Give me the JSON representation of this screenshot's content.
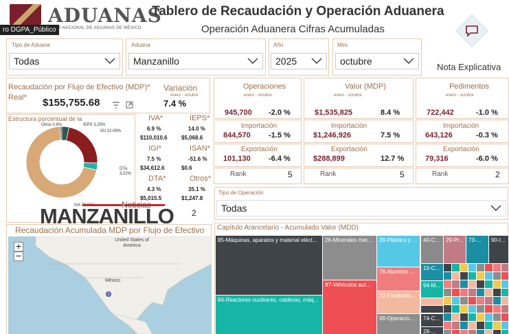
{
  "header": {
    "brand": "ADUANAS",
    "brand_sub": "AGENCIA NACIONAL DE ADUANAS DE MÉXICO",
    "tag": "ro DGPA_Público",
    "title": "Tablero de Recaudación y Operación Aduanera",
    "subtitle": "Operación Aduanera Cifras Acumuladas",
    "nota_label": "Nota Explicativa",
    "nota_icon": "comment-icon"
  },
  "filters": [
    {
      "label": "Tipo de Aduana",
      "value": "Todas"
    },
    {
      "label": "Aduana",
      "value": "Manzanillo"
    },
    {
      "label": "Año",
      "value": "2025"
    },
    {
      "label": "Mes",
      "value": "octubre"
    }
  ],
  "recaudacion": {
    "title_line1": "Recaudación por Flujo de Efectivo (MDP)*",
    "title_line2": "Real*",
    "value": "$155,755.68",
    "variacion_label": "Variación",
    "variacion_sub": "enero - octubre",
    "variacion_value": "7.4 %"
  },
  "donut": {
    "title": "Estructura porcentual de la",
    "legend": [
      {
        "label": "IEPS 3.25%"
      },
      {
        "label": "Otros 0.8%"
      },
      {
        "label": "IGI 22.09%"
      },
      {
        "label": "DTA 3.22%"
      },
      {
        "label": "IVA 70.65%"
      }
    ],
    "chart_data": {
      "type": "pie",
      "categories": [
        "IVA",
        "IGI",
        "DTA",
        "IEPS",
        "Otros"
      ],
      "values": [
        70.65,
        22.09,
        3.22,
        3.25,
        0.8
      ],
      "colors": [
        "#d8a877",
        "#8a1e1e",
        "#1fb3a8",
        "#2e5752",
        "#555555"
      ]
    }
  },
  "taxes": [
    {
      "name": "IVA*",
      "pct": "6.9 %",
      "value": "$110,010.6"
    },
    {
      "name": "IEPS*",
      "pct": "14.0 %",
      "value": "$5,068.6"
    },
    {
      "name": "IGI*",
      "pct": "7.5 %",
      "value": "$34,612.6"
    },
    {
      "name": "ISAN*",
      "pct": "-51.6 %",
      "value": "$0.6"
    },
    {
      "name": "DTA*",
      "pct": "4.3 %",
      "value": "$5,015.5"
    },
    {
      "name": "Otros*",
      "pct": "35.1 %",
      "value": "$1,247.8"
    }
  ],
  "tax_rank": "2",
  "kpis": {
    "period": "enero - octubre",
    "columns": [
      {
        "title": "Operaciones",
        "total": "945,700",
        "total_pct": "-2.0 %",
        "imp": "844,570",
        "imp_pct": "-1.5 %",
        "exp": "101,130",
        "exp_pct": "-6.4 %",
        "rank": "5"
      },
      {
        "title": "Valor (MDP)",
        "total": "$1,535,825",
        "total_pct": "8.4 %",
        "imp": "$1,246,926",
        "imp_pct": "7.5 %",
        "exp": "$288,899",
        "exp_pct": "12.7 %",
        "rank": "5"
      },
      {
        "title": "Pedimentos",
        "total": "722,442",
        "total_pct": "-1.0 %",
        "imp": "643,126",
        "imp_pct": "-0.3 %",
        "exp": "79,316",
        "exp_pct": "-6.0 %",
        "rank": "2"
      }
    ],
    "imp_label": "Importación",
    "exp_label": "Exportación",
    "rank_label": "Rank"
  },
  "tipo_operacion": {
    "label": "Tipo de Operación",
    "value": "Todas"
  },
  "map": {
    "title": "Recaudación Acumulada MDP por Flujo de Efectivo",
    "label_usa": "United States of America",
    "label_mexico": "México",
    "zoom_in": "+",
    "zoom_out": "−"
  },
  "watermark": {
    "small": "Noticias",
    "big": "MANZANILLO"
  },
  "treemap": {
    "title": "Capítulo Arancelario - Acumulado Valor (MDD)",
    "tiles": [
      {
        "label": "85-Máquinas, aparatos y material eléct...",
        "color": "#3e4448"
      },
      {
        "label": "84-Reactores nucleares, calderas, máq...",
        "color": "#16b5a6"
      },
      {
        "label": "26-Minerales met...",
        "color": "#8d8d8d"
      },
      {
        "label": "87-Vehículos aut...",
        "color": "#ee4f52"
      },
      {
        "label": "39-Plástico y ...",
        "color": "#55c8e6"
      },
      {
        "label": "76-Aluminio ...",
        "color": "#f07d7d"
      },
      {
        "label": "72-Fundición...",
        "color": "#f2b9a0"
      },
      {
        "label": "98-Operacio...",
        "color": "#8d8d8d"
      },
      {
        "label": "40-C...",
        "color": "#8a8a8a"
      },
      {
        "label": "29-Pr...",
        "color": "#c07b84"
      },
      {
        "label": "73-...",
        "color": "#1b8ea4"
      },
      {
        "label": "90-I...",
        "color": "#3e4448"
      },
      {
        "label": "10-C...",
        "color": "#1b8ea4"
      },
      {
        "label": "94-M...",
        "color": "#16b5a6"
      },
      {
        "label": "74-C...",
        "color": "#3e4448"
      },
      {
        "label": "28-...",
        "color": "#3e4448"
      }
    ]
  }
}
